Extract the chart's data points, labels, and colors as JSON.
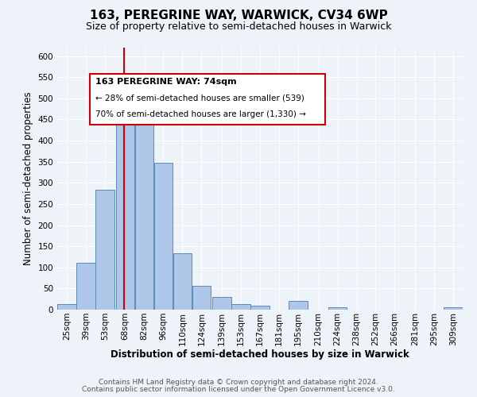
{
  "title": "163, PEREGRINE WAY, WARWICK, CV34 6WP",
  "subtitle": "Size of property relative to semi-detached houses in Warwick",
  "xlabel": "Distribution of semi-detached houses by size in Warwick",
  "ylabel": "Number of semi-detached properties",
  "categories": [
    "25sqm",
    "39sqm",
    "53sqm",
    "68sqm",
    "82sqm",
    "96sqm",
    "110sqm",
    "124sqm",
    "139sqm",
    "153sqm",
    "167sqm",
    "181sqm",
    "195sqm",
    "210sqm",
    "224sqm",
    "238sqm",
    "252sqm",
    "266sqm",
    "281sqm",
    "295sqm",
    "309sqm"
  ],
  "bin_edges": [
    25,
    39,
    53,
    68,
    82,
    96,
    110,
    124,
    139,
    153,
    167,
    181,
    195,
    210,
    224,
    238,
    252,
    266,
    281,
    295,
    309
  ],
  "values": [
    13,
    110,
    283,
    463,
    463,
    347,
    133,
    57,
    30,
    13,
    10,
    0,
    20,
    0,
    5,
    0,
    0,
    0,
    0,
    0,
    5
  ],
  "bar_color": "#aec6e8",
  "bar_edge_color": "#5a8ab8",
  "property_line_x": 74,
  "vline_color": "#cc0000",
  "annotation_box_color": "#cc0000",
  "annotation_title": "163 PEREGRINE WAY: 74sqm",
  "annotation_line1": "← 28% of semi-detached houses are smaller (539)",
  "annotation_line2": "70% of semi-detached houses are larger (1,330) →",
  "ylim": [
    0,
    620
  ],
  "yticks": [
    0,
    50,
    100,
    150,
    200,
    250,
    300,
    350,
    400,
    450,
    500,
    550,
    600
  ],
  "footer1": "Contains HM Land Registry data © Crown copyright and database right 2024.",
  "footer2": "Contains public sector information licensed under the Open Government Licence v3.0.",
  "background_color": "#eef2f9",
  "grid_color": "#ffffff",
  "title_fontsize": 11,
  "subtitle_fontsize": 9,
  "axis_label_fontsize": 8.5,
  "tick_fontsize": 7.5,
  "footer_fontsize": 6.5,
  "annotation_title_fontsize": 8,
  "annotation_text_fontsize": 7.5
}
